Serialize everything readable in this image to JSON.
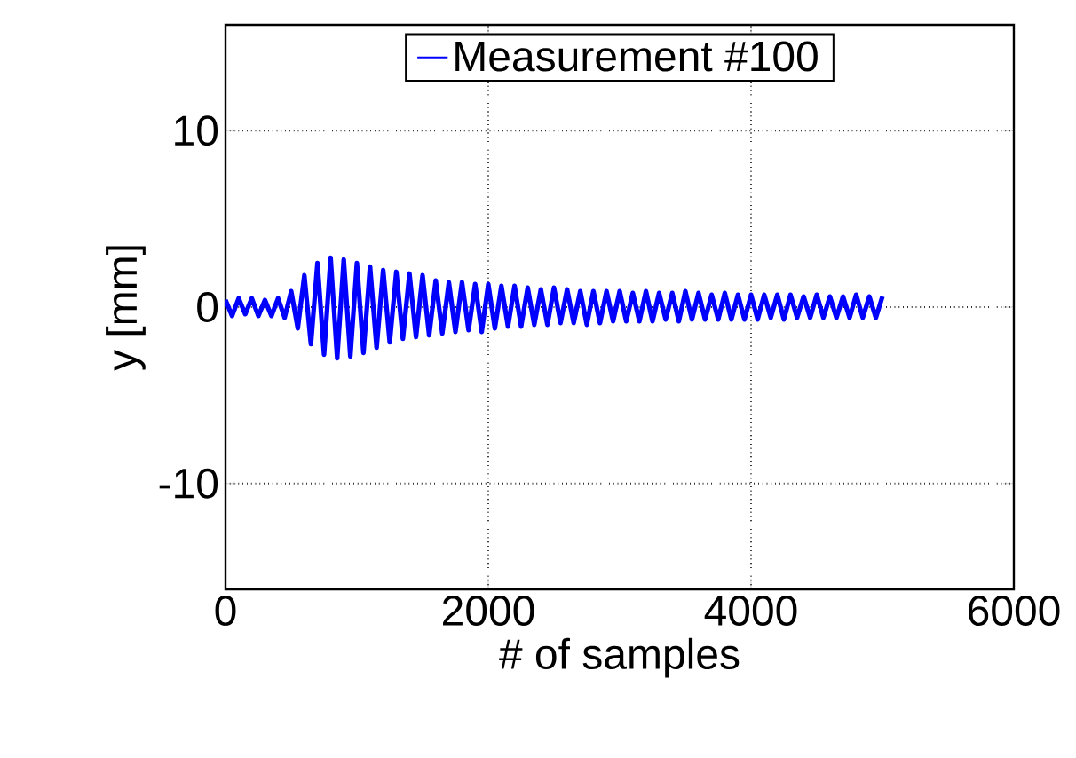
{
  "chart_data": {
    "type": "line",
    "xlabel": "# of samples",
    "ylabel": "y [mm]",
    "xlim": [
      0,
      6000
    ],
    "xticks": [
      0,
      2000,
      4000,
      6000
    ],
    "ylim": [
      -16,
      16
    ],
    "yticks": [
      -10,
      0,
      10
    ],
    "grid": true,
    "legend": "top",
    "line_style": "solid",
    "marker": "none",
    "series": [
      {
        "name": "Measurement #100",
        "color": "#0000ff",
        "x": [
          0,
          50,
          100,
          150,
          200,
          250,
          300,
          350,
          400,
          450,
          500,
          550,
          600,
          650,
          700,
          750,
          800,
          850,
          900,
          950,
          1000,
          1050,
          1100,
          1150,
          1200,
          1250,
          1300,
          1350,
          1400,
          1450,
          1500,
          1550,
          1600,
          1650,
          1700,
          1750,
          1800,
          1850,
          1900,
          1950,
          2000,
          2050,
          2100,
          2150,
          2200,
          2250,
          2300,
          2350,
          2400,
          2450,
          2500,
          2550,
          2600,
          2650,
          2700,
          2750,
          2800,
          2850,
          2900,
          2950,
          3000,
          3050,
          3100,
          3150,
          3200,
          3250,
          3300,
          3350,
          3400,
          3450,
          3500,
          3550,
          3600,
          3650,
          3700,
          3750,
          3800,
          3850,
          3900,
          3950,
          4000,
          4050,
          4100,
          4150,
          4200,
          4250,
          4300,
          4350,
          4400,
          4450,
          4500,
          4550,
          4600,
          4650,
          4700,
          4750,
          4800,
          4850,
          4900,
          4950,
          5000
        ],
        "values": [
          0.4,
          -0.5,
          0.5,
          -0.4,
          0.5,
          -0.5,
          0.4,
          -0.5,
          0.5,
          -0.6,
          0.9,
          -1.2,
          1.8,
          -2.1,
          2.5,
          -2.7,
          2.8,
          -2.9,
          2.7,
          -2.8,
          2.5,
          -2.6,
          2.3,
          -2.3,
          2.1,
          -2.0,
          2.0,
          -1.8,
          1.9,
          -1.7,
          1.8,
          -1.6,
          1.5,
          -1.5,
          1.4,
          -1.4,
          1.4,
          -1.3,
          1.3,
          -1.4,
          1.3,
          -1.2,
          1.2,
          -1.1,
          1.2,
          -1.1,
          1.1,
          -1.0,
          1.0,
          -1.0,
          1.1,
          -0.9,
          1.0,
          -0.9,
          0.9,
          -1.0,
          0.9,
          -0.9,
          0.9,
          -0.8,
          0.9,
          -0.8,
          0.8,
          -0.8,
          0.9,
          -0.8,
          0.8,
          -0.7,
          0.8,
          -0.8,
          0.9,
          -0.7,
          0.8,
          -0.7,
          0.7,
          -0.7,
          0.8,
          -0.7,
          0.7,
          -0.7,
          0.7,
          -0.7,
          0.7,
          -0.6,
          0.7,
          -0.7,
          0.7,
          -0.6,
          0.6,
          -0.6,
          0.7,
          -0.6,
          0.6,
          -0.6,
          0.6,
          -0.6,
          0.7,
          -0.6,
          0.6,
          -0.6,
          0.6
        ]
      }
    ]
  }
}
